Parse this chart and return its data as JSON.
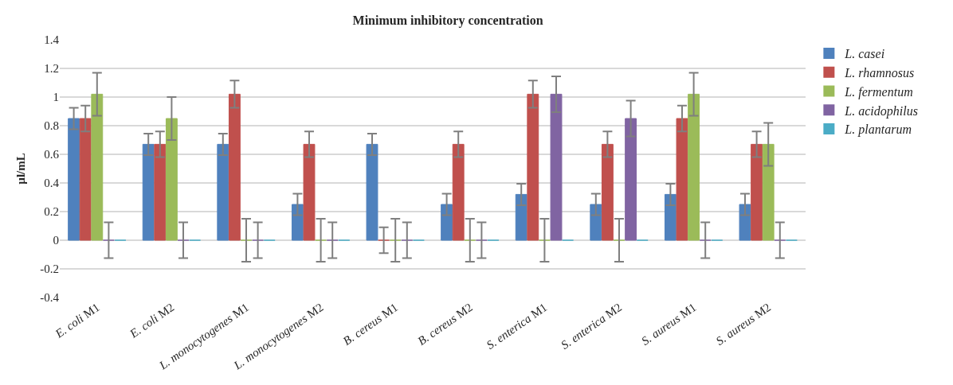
{
  "chart_data": {
    "type": "bar",
    "title": "Minimum inhibitory concentration",
    "ylabel": "µl/mL",
    "categories": [
      "E. coli M1",
      "E. coli M2",
      "L. monocytogenes M1",
      "L. monocytogenes M2",
      "B. cereus M1",
      "B. cereus M2",
      "S. enterica M1",
      "S. enterica M2",
      "S. aureus M1",
      "S. aureus M2"
    ],
    "series": [
      {
        "name": "L. casei",
        "color": "#4f81bd",
        "values": [
          0.85,
          0.67,
          0.67,
          0.25,
          0.67,
          0.25,
          0.32,
          0.25,
          0.32,
          0.25
        ],
        "errors": [
          0.075,
          0.075,
          0.075,
          0.075,
          0.075,
          0.075,
          0.075,
          0.075,
          0.075,
          0.075
        ]
      },
      {
        "name": "L. rhamnosus",
        "color": "#c0504d",
        "values": [
          0.85,
          0.67,
          1.02,
          0.67,
          0,
          0.67,
          1.02,
          0.67,
          0.85,
          0.67
        ],
        "errors": [
          0.09,
          0.09,
          0.095,
          0.09,
          0.09,
          0.09,
          0.095,
          0.09,
          0.09,
          0.09
        ]
      },
      {
        "name": "L. fermentum",
        "color": "#9bbb59",
        "values": [
          1.02,
          0.85,
          0,
          0,
          0,
          0,
          0,
          0,
          1.02,
          0.67
        ],
        "errors": [
          0.15,
          0.15,
          0.15,
          0.15,
          0.15,
          0.15,
          0.15,
          0.15,
          0.15,
          0.15
        ]
      },
      {
        "name": "L. acidophilus",
        "color": "#8064a2",
        "values": [
          0,
          0,
          0,
          0,
          0,
          0,
          1.02,
          0.85,
          0,
          0
        ],
        "errors": [
          0.125,
          0.125,
          0.125,
          0.125,
          0.125,
          0.125,
          0.125,
          0.125,
          0.125,
          0.125
        ]
      },
      {
        "name": "L. plantarum",
        "color": "#4bacc6",
        "values": [
          0,
          0,
          0,
          0,
          0,
          0,
          0,
          0,
          0,
          0
        ]
      }
    ],
    "ylim": [
      -0.4,
      1.4
    ],
    "yticks": [
      -0.4,
      -0.2,
      0,
      0.2,
      0.4,
      0.6,
      0.8,
      1,
      1.2,
      1.4
    ],
    "grid": "y",
    "legend": "right"
  }
}
